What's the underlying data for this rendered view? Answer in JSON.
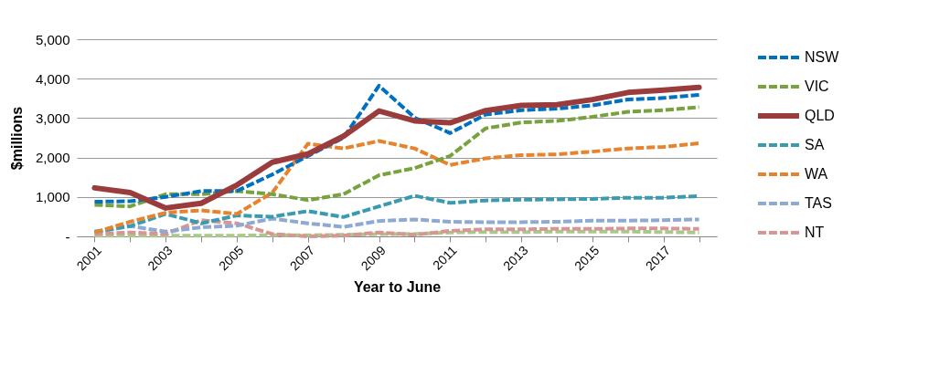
{
  "chart_data": {
    "type": "line",
    "xlabel": "Year to June",
    "ylabel": "$millions",
    "categories": [
      "2001",
      null,
      "2003",
      null,
      "2005",
      null,
      "2007",
      null,
      "2009",
      null,
      "2011",
      null,
      "2013",
      null,
      "2015",
      null,
      "2017",
      null
    ],
    "ylim": [
      0,
      5000
    ],
    "yticks": [
      {
        "value": 0,
        "label": "-"
      },
      {
        "value": 1000,
        "label": "1,000"
      },
      {
        "value": 2000,
        "label": "2,000"
      },
      {
        "value": 3000,
        "label": "3,000"
      },
      {
        "value": 4000,
        "label": "4,000"
      },
      {
        "value": 5000,
        "label": "5,000"
      }
    ],
    "grid": "y",
    "legend": "right",
    "marker": "none",
    "series": [
      {
        "name": "NSW",
        "color": "#0070c0",
        "line_style": "dashed",
        "values": [
          880,
          890,
          1000,
          1150,
          1150,
          1570,
          2040,
          2500,
          3820,
          3010,
          2620,
          3090,
          3200,
          3240,
          3320,
          3470,
          3510,
          3590
        ]
      },
      {
        "name": "VIC",
        "color": "#77a23e",
        "line_style": "dashed",
        "values": [
          800,
          760,
          1070,
          1070,
          1150,
          1070,
          920,
          1070,
          1550,
          1730,
          2040,
          2740,
          2890,
          2930,
          3030,
          3160,
          3200,
          3280
        ]
      },
      {
        "name": "QLD",
        "color": "#9b3c3c",
        "line_style": "solid",
        "values": [
          1230,
          1110,
          720,
          840,
          1300,
          1880,
          2090,
          2540,
          3180,
          2930,
          2880,
          3190,
          3320,
          3340,
          3470,
          3650,
          3710,
          3780
        ]
      },
      {
        "name": "SA",
        "color": "#3a9bb0",
        "line_style": "dashed",
        "values": [
          120,
          260,
          570,
          330,
          530,
          500,
          640,
          490,
          760,
          1030,
          850,
          910,
          930,
          940,
          950,
          980,
          980,
          1020
        ]
      },
      {
        "name": "WA",
        "color": "#e8832d",
        "line_style": "dashed",
        "values": [
          100,
          370,
          600,
          660,
          570,
          1110,
          2350,
          2230,
          2420,
          2230,
          1810,
          1980,
          2060,
          2080,
          2150,
          2230,
          2270,
          2360
        ]
      },
      {
        "name": "TAS",
        "color": "#8ea9d4",
        "line_style": "dashed",
        "values": [
          100,
          260,
          120,
          230,
          270,
          450,
          330,
          240,
          390,
          430,
          370,
          360,
          360,
          370,
          400,
          400,
          410,
          430
        ]
      },
      {
        "name": "NT",
        "color": "#d99494",
        "line_style": "dashed",
        "values": [
          60,
          100,
          60,
          410,
          330,
          60,
          0,
          20,
          100,
          40,
          140,
          180,
          180,
          190,
          190,
          200,
          200,
          190
        ]
      },
      {
        "color": "#a9c98a",
        "line_style": "dashed",
        "values": [
          20,
          20,
          20,
          20,
          20,
          30,
          30,
          40,
          60,
          60,
          100,
          110,
          110,
          120,
          120,
          120,
          110,
          100
        ]
      }
    ]
  }
}
